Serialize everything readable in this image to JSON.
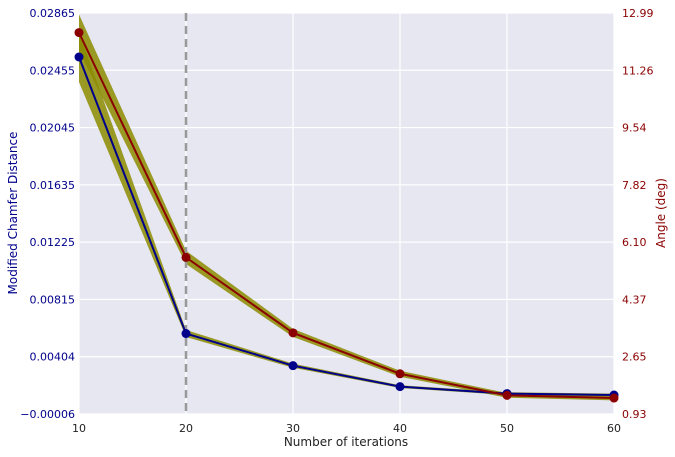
{
  "chart_data": {
    "type": "line",
    "xlabel": "Number of iterations",
    "ylabel_left": "Modified Chamfer Distance",
    "ylabel_right": "Angle (deg)",
    "x_ticks": [
      "10",
      "20",
      "30",
      "40",
      "50",
      "60"
    ],
    "x_range": [
      10,
      60
    ],
    "y_left_ticks": [
      "−0.00006",
      "0.00404",
      "0.00815",
      "0.01225",
      "0.01635",
      "0.02045",
      "0.02455",
      "0.02865"
    ],
    "y_left_range": [
      -6e-05,
      0.02865
    ],
    "y_right_ticks": [
      "0.93",
      "2.65",
      "4.37",
      "6.10",
      "7.82",
      "9.54",
      "11.26",
      "12.99"
    ],
    "y_right_range": [
      0.93,
      12.99
    ],
    "grid": true,
    "vertical_marker_x": 20,
    "series": [
      {
        "axis": "left",
        "color": "#00008b",
        "x": [
          10,
          20,
          30,
          40,
          50,
          60
        ],
        "values": [
          0.0255,
          0.0057,
          0.0034,
          0.0019,
          0.0014,
          0.0013
        ],
        "band": [
          0.0018,
          0.00025,
          0.00015,
          0.0001,
          0.0001,
          0.0001
        ]
      },
      {
        "axis": "right",
        "color": "#8b0000",
        "x": [
          10,
          20,
          30,
          40,
          50,
          60
        ],
        "values": [
          12.4,
          5.64,
          3.37,
          2.14,
          1.49,
          1.41
        ],
        "band": [
          0.55,
          0.2,
          0.12,
          0.09,
          0.07,
          0.07
        ]
      }
    ],
    "band_color": "#8b8b00",
    "grid_background": "#e6e7f0",
    "marker_color": "#999999"
  }
}
